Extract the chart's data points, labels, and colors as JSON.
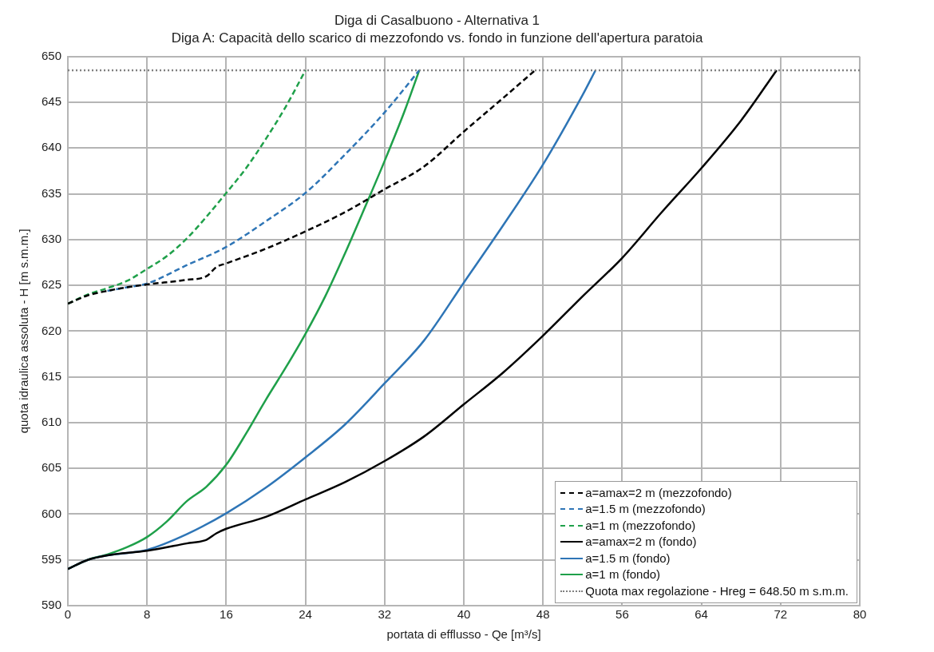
{
  "chart_data": {
    "type": "line",
    "title": "Diga di Casalbuono - Alternativa 1",
    "subtitle": "Diga A: Capacità dello scarico di mezzofondo vs. fondo in funzione dell'apertura paratoia",
    "xlabel": "portata di efflusso - Qe [m³/s]",
    "ylabel": "quota idraulica assoluta - H [m s.m.m.]",
    "xlim": [
      0,
      80
    ],
    "xticks": [
      0,
      8,
      16,
      24,
      32,
      40,
      48,
      56,
      64,
      72,
      80
    ],
    "ylim": [
      590,
      650
    ],
    "yticks": [
      590,
      595,
      600,
      605,
      610,
      615,
      620,
      625,
      630,
      635,
      640,
      645,
      650
    ],
    "grid": true,
    "legend": "bottom right",
    "marker": "none",
    "series": [
      {
        "name": "a=amax=2 m (mezzofondo)",
        "color": "#000000",
        "line_style": "dashed",
        "x": [
          0,
          2,
          4,
          6,
          8,
          12,
          14,
          15,
          16,
          20,
          24,
          28,
          32,
          36,
          40,
          44,
          47.2
        ],
        "values": [
          623,
          623.9,
          624.4,
          624.8,
          625.1,
          625.6,
          626,
          627,
          627.4,
          629,
          630.9,
          633,
          635.5,
          638,
          641.8,
          645.5,
          648.5
        ]
      },
      {
        "name": "a=1.5 m (mezzofondo)",
        "color": "#2e75b6",
        "line_style": "dashed",
        "x": [
          4,
          6,
          8,
          12,
          16,
          20,
          24,
          28,
          32,
          35.5
        ],
        "values": [
          624.4,
          624.8,
          625.2,
          627.2,
          629.2,
          632,
          635.1,
          639.3,
          643.9,
          648.5
        ]
      },
      {
        "name": "a=1 m (mezzofondo)",
        "color": "#1fa04a",
        "line_style": "dashed",
        "x": [
          0,
          2,
          4,
          6,
          8,
          10,
          12,
          14,
          16,
          18,
          20,
          22,
          24
        ],
        "values": [
          623,
          624,
          624.7,
          625.5,
          626.8,
          628.2,
          630.1,
          632.5,
          635.1,
          637.8,
          641,
          644.5,
          648.5
        ]
      },
      {
        "name": "a=amax=2 m (fondo)",
        "color": "#000000",
        "line_style": "solid",
        "x": [
          0,
          2,
          4,
          8,
          12,
          14,
          15,
          16,
          20,
          24,
          28,
          32,
          36,
          40,
          44,
          48,
          52,
          56,
          60,
          64,
          68,
          71.6
        ],
        "values": [
          594,
          595,
          595.5,
          596,
          596.8,
          597.2,
          597.9,
          598.4,
          599.7,
          601.6,
          603.5,
          605.8,
          608.5,
          612,
          615.5,
          619.5,
          623.8,
          628,
          633,
          637.8,
          643,
          648.5
        ]
      },
      {
        "name": "a=1.5 m (fondo)",
        "color": "#2e75b6",
        "line_style": "solid",
        "x": [
          0,
          2,
          4,
          8,
          12,
          16,
          20,
          24,
          28,
          32,
          36,
          40,
          44,
          48,
          52,
          53.3
        ],
        "values": [
          594,
          595,
          595.5,
          596.1,
          597.8,
          600.1,
          602.9,
          606.2,
          609.8,
          614.3,
          619,
          625.3,
          631.6,
          638.2,
          645.8,
          648.5
        ]
      },
      {
        "name": "a=1 m (fondo)",
        "color": "#1fa04a",
        "line_style": "solid",
        "x": [
          0,
          2,
          4,
          6,
          8,
          10,
          12,
          14,
          16,
          18,
          20,
          22,
          24,
          26,
          28,
          30,
          32,
          34,
          35.5
        ],
        "values": [
          594,
          595,
          595.6,
          596.4,
          597.5,
          599.2,
          601.4,
          603,
          605.4,
          608.8,
          612.5,
          616,
          619.7,
          623.8,
          628.5,
          633.5,
          638.6,
          644,
          648.5
        ]
      }
    ],
    "ref_lines": [
      {
        "axis": "y",
        "value": 648.5,
        "label": "Quota max regolazione - Hreg = 648.50 m s.m.m.",
        "color": "#808080",
        "line_style": "dotted"
      }
    ]
  }
}
